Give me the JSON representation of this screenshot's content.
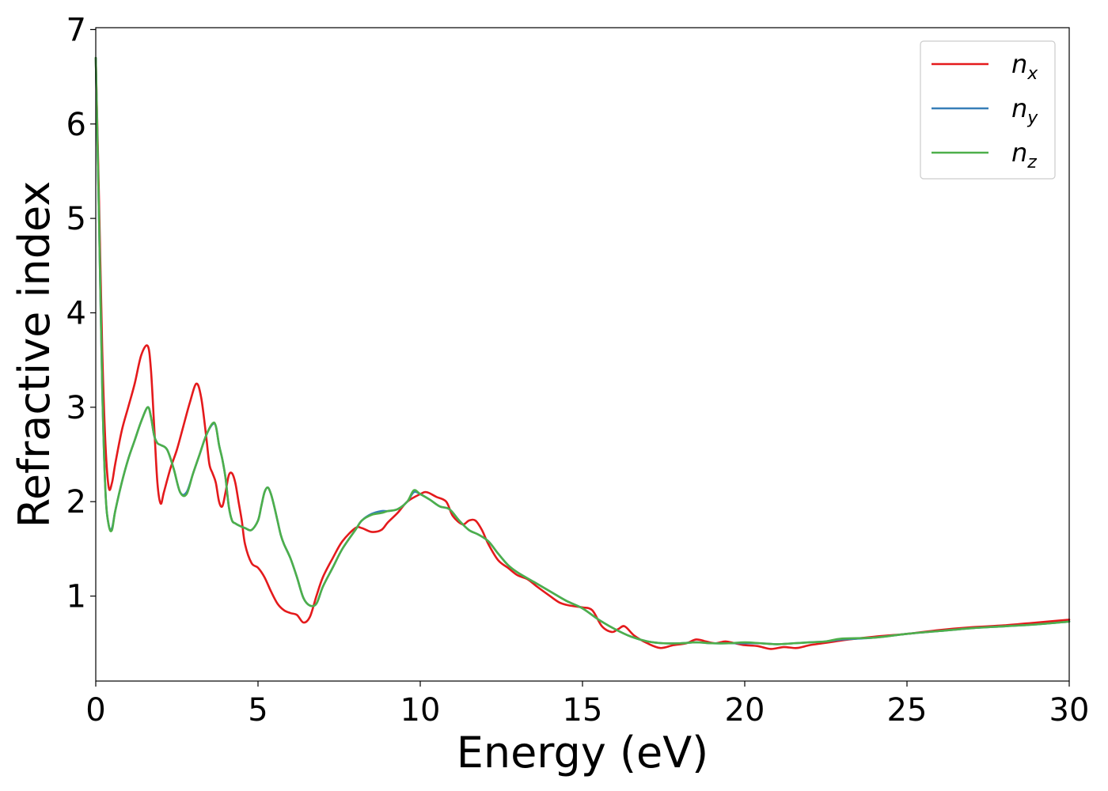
{
  "chart_data": {
    "type": "line",
    "xlabel": "Energy (eV)",
    "ylabel": "Refractive index",
    "xlim": [
      0,
      30
    ],
    "ylim": [
      0.1,
      7.02
    ],
    "xticks": [
      0,
      5,
      10,
      15,
      20,
      25,
      30
    ],
    "yticks": [
      1,
      2,
      3,
      4,
      5,
      6,
      7
    ],
    "grid": false,
    "legend_position": "top-right",
    "series": [
      {
        "name": "n_x",
        "label_base": "n",
        "label_sub": "x",
        "color": "#e41a1c",
        "x": [
          0.0,
          0.1,
          0.2,
          0.3,
          0.4,
          0.5,
          0.6,
          0.8,
          1.0,
          1.2,
          1.4,
          1.6,
          1.7,
          1.8,
          1.9,
          2.0,
          2.1,
          2.3,
          2.5,
          2.7,
          2.9,
          3.1,
          3.25,
          3.4,
          3.5,
          3.6,
          3.7,
          3.8,
          3.9,
          4.0,
          4.1,
          4.2,
          4.3,
          4.4,
          4.5,
          4.6,
          4.8,
          5.0,
          5.2,
          5.4,
          5.6,
          5.8,
          6.0,
          6.2,
          6.4,
          6.6,
          6.8,
          7.0,
          7.3,
          7.6,
          8.0,
          8.2,
          8.5,
          8.8,
          9.0,
          9.3,
          9.6,
          10.0,
          10.2,
          10.5,
          10.8,
          11.0,
          11.3,
          11.5,
          11.7,
          11.9,
          12.1,
          12.4,
          12.7,
          13.0,
          13.3,
          13.6,
          14.0,
          14.3,
          14.6,
          15.0,
          15.3,
          15.6,
          15.9,
          16.1,
          16.3,
          16.6,
          17.0,
          17.4,
          17.8,
          18.2,
          18.5,
          18.8,
          19.1,
          19.4,
          19.7,
          20.0,
          20.4,
          20.8,
          21.2,
          21.6,
          22.0,
          22.4,
          22.8,
          23.2,
          24.0,
          25.0,
          26.0,
          27.0,
          28.0,
          29.0,
          30.0
        ],
        "y": [
          6.7,
          5.2,
          3.6,
          2.6,
          2.15,
          2.2,
          2.4,
          2.75,
          3.0,
          3.25,
          3.55,
          3.65,
          3.4,
          2.8,
          2.2,
          1.98,
          2.1,
          2.35,
          2.55,
          2.8,
          3.05,
          3.25,
          3.1,
          2.7,
          2.4,
          2.3,
          2.2,
          2.0,
          1.95,
          2.1,
          2.28,
          2.3,
          2.2,
          2.0,
          1.8,
          1.55,
          1.35,
          1.3,
          1.2,
          1.05,
          0.92,
          0.85,
          0.82,
          0.8,
          0.72,
          0.78,
          1.0,
          1.2,
          1.4,
          1.58,
          1.72,
          1.72,
          1.68,
          1.7,
          1.78,
          1.88,
          2.0,
          2.08,
          2.1,
          2.05,
          2.0,
          1.85,
          1.76,
          1.8,
          1.8,
          1.7,
          1.55,
          1.38,
          1.3,
          1.22,
          1.18,
          1.1,
          1.0,
          0.93,
          0.9,
          0.88,
          0.85,
          0.68,
          0.62,
          0.65,
          0.68,
          0.58,
          0.5,
          0.45,
          0.48,
          0.5,
          0.54,
          0.52,
          0.5,
          0.52,
          0.5,
          0.48,
          0.47,
          0.44,
          0.46,
          0.45,
          0.48,
          0.5,
          0.52,
          0.54,
          0.57,
          0.6,
          0.64,
          0.67,
          0.69,
          0.72,
          0.75
        ]
      },
      {
        "name": "n_y",
        "label_base": "n",
        "label_sub": "y",
        "color": "#377eb8",
        "x": [
          0.0,
          0.1,
          0.2,
          0.3,
          0.4,
          0.5,
          0.6,
          0.8,
          1.0,
          1.2,
          1.4,
          1.6,
          1.7,
          1.8,
          1.9,
          2.0,
          2.2,
          2.4,
          2.6,
          2.8,
          3.0,
          3.2,
          3.4,
          3.6,
          3.7,
          3.8,
          3.9,
          4.0,
          4.1,
          4.2,
          4.3,
          4.4,
          4.6,
          4.8,
          5.0,
          5.1,
          5.2,
          5.3,
          5.4,
          5.5,
          5.6,
          5.7,
          5.8,
          6.0,
          6.2,
          6.4,
          6.6,
          6.8,
          7.0,
          7.3,
          7.6,
          8.0,
          8.2,
          8.5,
          8.8,
          9.0,
          9.3,
          9.6,
          9.8,
          10.0,
          10.3,
          10.6,
          10.9,
          11.2,
          11.5,
          11.8,
          12.1,
          12.4,
          12.7,
          13.0,
          13.5,
          14.0,
          14.5,
          15.0,
          15.5,
          16.0,
          16.5,
          17.0,
          17.5,
          18.0,
          18.5,
          19.0,
          19.5,
          20.0,
          20.5,
          21.0,
          21.5,
          22.0,
          22.5,
          23.0,
          24.0,
          25.0,
          26.0,
          27.0,
          28.0,
          29.0,
          30.0
        ],
        "y": [
          6.7,
          5.0,
          3.2,
          2.1,
          1.75,
          1.72,
          1.9,
          2.2,
          2.45,
          2.65,
          2.85,
          3.0,
          2.9,
          2.7,
          2.62,
          2.6,
          2.55,
          2.35,
          2.1,
          2.1,
          2.3,
          2.5,
          2.7,
          2.82,
          2.8,
          2.6,
          2.45,
          2.25,
          1.95,
          1.8,
          1.77,
          1.75,
          1.72,
          1.7,
          1.8,
          1.95,
          2.1,
          2.15,
          2.08,
          1.95,
          1.8,
          1.65,
          1.55,
          1.4,
          1.2,
          0.98,
          0.9,
          0.92,
          1.1,
          1.3,
          1.5,
          1.7,
          1.8,
          1.87,
          1.9,
          1.9,
          1.92,
          2.0,
          2.1,
          2.08,
          2.02,
          1.95,
          1.92,
          1.8,
          1.7,
          1.65,
          1.58,
          1.45,
          1.33,
          1.25,
          1.15,
          1.05,
          0.95,
          0.87,
          0.75,
          0.65,
          0.57,
          0.52,
          0.5,
          0.5,
          0.51,
          0.5,
          0.5,
          0.5,
          0.5,
          0.49,
          0.5,
          0.51,
          0.52,
          0.54,
          0.56,
          0.6,
          0.63,
          0.66,
          0.68,
          0.7,
          0.73
        ]
      },
      {
        "name": "n_z",
        "label_base": "n",
        "label_sub": "z",
        "color": "#4daf4a",
        "x": [
          0.0,
          0.1,
          0.2,
          0.3,
          0.4,
          0.5,
          0.6,
          0.8,
          1.0,
          1.2,
          1.4,
          1.6,
          1.7,
          1.8,
          1.9,
          2.0,
          2.2,
          2.4,
          2.6,
          2.8,
          3.0,
          3.2,
          3.4,
          3.6,
          3.7,
          3.8,
          3.9,
          4.0,
          4.1,
          4.2,
          4.3,
          4.4,
          4.6,
          4.8,
          5.0,
          5.1,
          5.2,
          5.3,
          5.4,
          5.5,
          5.6,
          5.7,
          5.8,
          6.0,
          6.2,
          6.4,
          6.6,
          6.8,
          7.0,
          7.3,
          7.6,
          8.0,
          8.2,
          8.5,
          8.8,
          9.0,
          9.3,
          9.6,
          9.8,
          10.0,
          10.3,
          10.6,
          10.9,
          11.2,
          11.5,
          11.8,
          12.1,
          12.4,
          12.7,
          13.0,
          13.5,
          14.0,
          14.5,
          15.0,
          15.5,
          16.0,
          16.5,
          17.0,
          17.5,
          18.0,
          18.5,
          19.0,
          19.5,
          20.0,
          20.5,
          21.0,
          21.5,
          22.0,
          22.5,
          23.0,
          24.0,
          25.0,
          26.0,
          27.0,
          28.0,
          29.0,
          30.0
        ],
        "y": [
          6.7,
          5.0,
          3.2,
          2.1,
          1.75,
          1.7,
          1.9,
          2.2,
          2.45,
          2.65,
          2.85,
          3.0,
          2.9,
          2.7,
          2.62,
          2.6,
          2.55,
          2.35,
          2.1,
          2.08,
          2.3,
          2.5,
          2.7,
          2.83,
          2.8,
          2.6,
          2.45,
          2.25,
          1.95,
          1.8,
          1.77,
          1.75,
          1.72,
          1.7,
          1.8,
          1.95,
          2.1,
          2.15,
          2.08,
          1.95,
          1.8,
          1.65,
          1.55,
          1.4,
          1.2,
          0.98,
          0.9,
          0.92,
          1.1,
          1.3,
          1.5,
          1.7,
          1.8,
          1.86,
          1.88,
          1.9,
          1.92,
          2.0,
          2.12,
          2.08,
          2.02,
          1.95,
          1.92,
          1.8,
          1.7,
          1.65,
          1.58,
          1.45,
          1.33,
          1.25,
          1.15,
          1.05,
          0.95,
          0.87,
          0.75,
          0.65,
          0.57,
          0.52,
          0.5,
          0.5,
          0.51,
          0.5,
          0.5,
          0.51,
          0.5,
          0.49,
          0.5,
          0.51,
          0.52,
          0.55,
          0.56,
          0.6,
          0.63,
          0.66,
          0.68,
          0.7,
          0.73
        ]
      }
    ]
  }
}
